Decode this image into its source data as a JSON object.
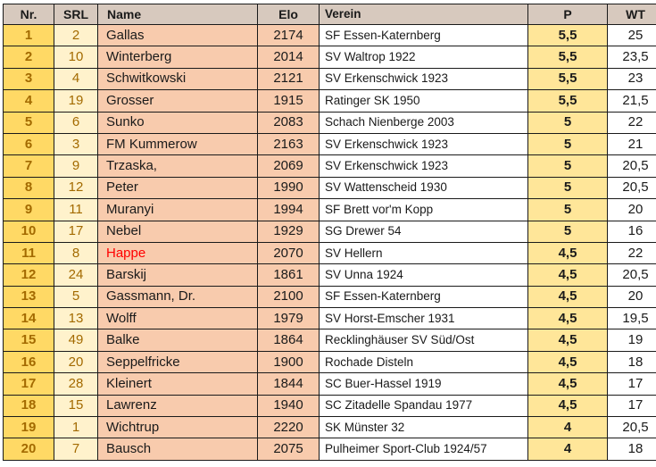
{
  "headers": {
    "nr": "Nr.",
    "srl": "SRL",
    "name": "Name",
    "elo": "Elo",
    "verein": "Verein",
    "p": "P",
    "wt": "WT"
  },
  "colors": {
    "header_bg": "#d7c9be",
    "nr_bg": "#ffd965",
    "srl_bg": "#fff2cc",
    "name_elo_bg": "#f8cbad",
    "p_bg": "#ffe699",
    "highlight_text": "#ff0000"
  },
  "highlighted_player": "Happe",
  "rows": [
    {
      "nr": "1",
      "srl": "2",
      "name": "Gallas",
      "elo": "2174",
      "verein": "SF Essen-Katernberg",
      "p": "5,5",
      "wt": "25"
    },
    {
      "nr": "2",
      "srl": "10",
      "name": "Winterberg",
      "elo": "2014",
      "verein": "SV Waltrop 1922",
      "p": "5,5",
      "wt": "23,5"
    },
    {
      "nr": "3",
      "srl": "4",
      "name": "Schwitkowski",
      "elo": "2121",
      "verein": "SV Erkenschwick 1923",
      "p": "5,5",
      "wt": "23"
    },
    {
      "nr": "4",
      "srl": "19",
      "name": "Grosser",
      "elo": "1915",
      "verein": "Ratinger SK 1950",
      "p": "5,5",
      "wt": "21,5"
    },
    {
      "nr": "5",
      "srl": "6",
      "name": "Sunko",
      "elo": "2083",
      "verein": "Schach Nienberge 2003",
      "p": "5",
      "wt": "22"
    },
    {
      "nr": "6",
      "srl": "3",
      "name": "FM Kummerow",
      "elo": "2163",
      "verein": "SV Erkenschwick 1923",
      "p": "5",
      "wt": "21"
    },
    {
      "nr": "7",
      "srl": "9",
      "name": "Trzaska,",
      "elo": "2069",
      "verein": "SV Erkenschwick 1923",
      "p": "5",
      "wt": "20,5"
    },
    {
      "nr": "8",
      "srl": "12",
      "name": "Peter",
      "elo": "1990",
      "verein": "SV Wattenscheid 1930",
      "p": "5",
      "wt": "20,5"
    },
    {
      "nr": "9",
      "srl": "11",
      "name": "Muranyi",
      "elo": "1994",
      "verein": "SF Brett vor'm Kopp",
      "p": "5",
      "wt": "20"
    },
    {
      "nr": "10",
      "srl": "17",
      "name": "Nebel",
      "elo": "1929",
      "verein": "SG Drewer 54",
      "p": "5",
      "wt": "16"
    },
    {
      "nr": "11",
      "srl": "8",
      "name": "Happe",
      "elo": "2070",
      "verein": "SV Hellern",
      "p": "4,5",
      "wt": "22"
    },
    {
      "nr": "12",
      "srl": "24",
      "name": "Barskij",
      "elo": "1861",
      "verein": "SV Unna 1924",
      "p": "4,5",
      "wt": "20,5"
    },
    {
      "nr": "13",
      "srl": "5",
      "name": "Gassmann, Dr.",
      "elo": "2100",
      "verein": "SF Essen-Katernberg",
      "p": "4,5",
      "wt": "20"
    },
    {
      "nr": "14",
      "srl": "13",
      "name": "Wolff",
      "elo": "1979",
      "verein": "SV Horst-Emscher 1931",
      "p": "4,5",
      "wt": "19,5"
    },
    {
      "nr": "15",
      "srl": "49",
      "name": "Balke",
      "elo": "1864",
      "verein": "Recklinghäuser SV Süd/Ost",
      "p": "4,5",
      "wt": "19"
    },
    {
      "nr": "16",
      "srl": "20",
      "name": "Seppelfricke",
      "elo": "1900",
      "verein": "Rochade Disteln",
      "p": "4,5",
      "wt": "18"
    },
    {
      "nr": "17",
      "srl": "28",
      "name": "Kleinert",
      "elo": "1844",
      "verein": "SC Buer-Hassel 1919",
      "p": "4,5",
      "wt": "17"
    },
    {
      "nr": "18",
      "srl": "15",
      "name": "Lawrenz",
      "elo": "1940",
      "verein": "SC Zitadelle Spandau 1977",
      "p": "4,5",
      "wt": "17"
    },
    {
      "nr": "19",
      "srl": "1",
      "name": "Wichtrup",
      "elo": "2220",
      "verein": "SK Münster 32",
      "p": "4",
      "wt": "20,5"
    },
    {
      "nr": "20",
      "srl": "7",
      "name": "Bausch",
      "elo": "2075",
      "verein": "Pulheimer Sport-Club 1924/57",
      "p": "4",
      "wt": "18"
    }
  ]
}
